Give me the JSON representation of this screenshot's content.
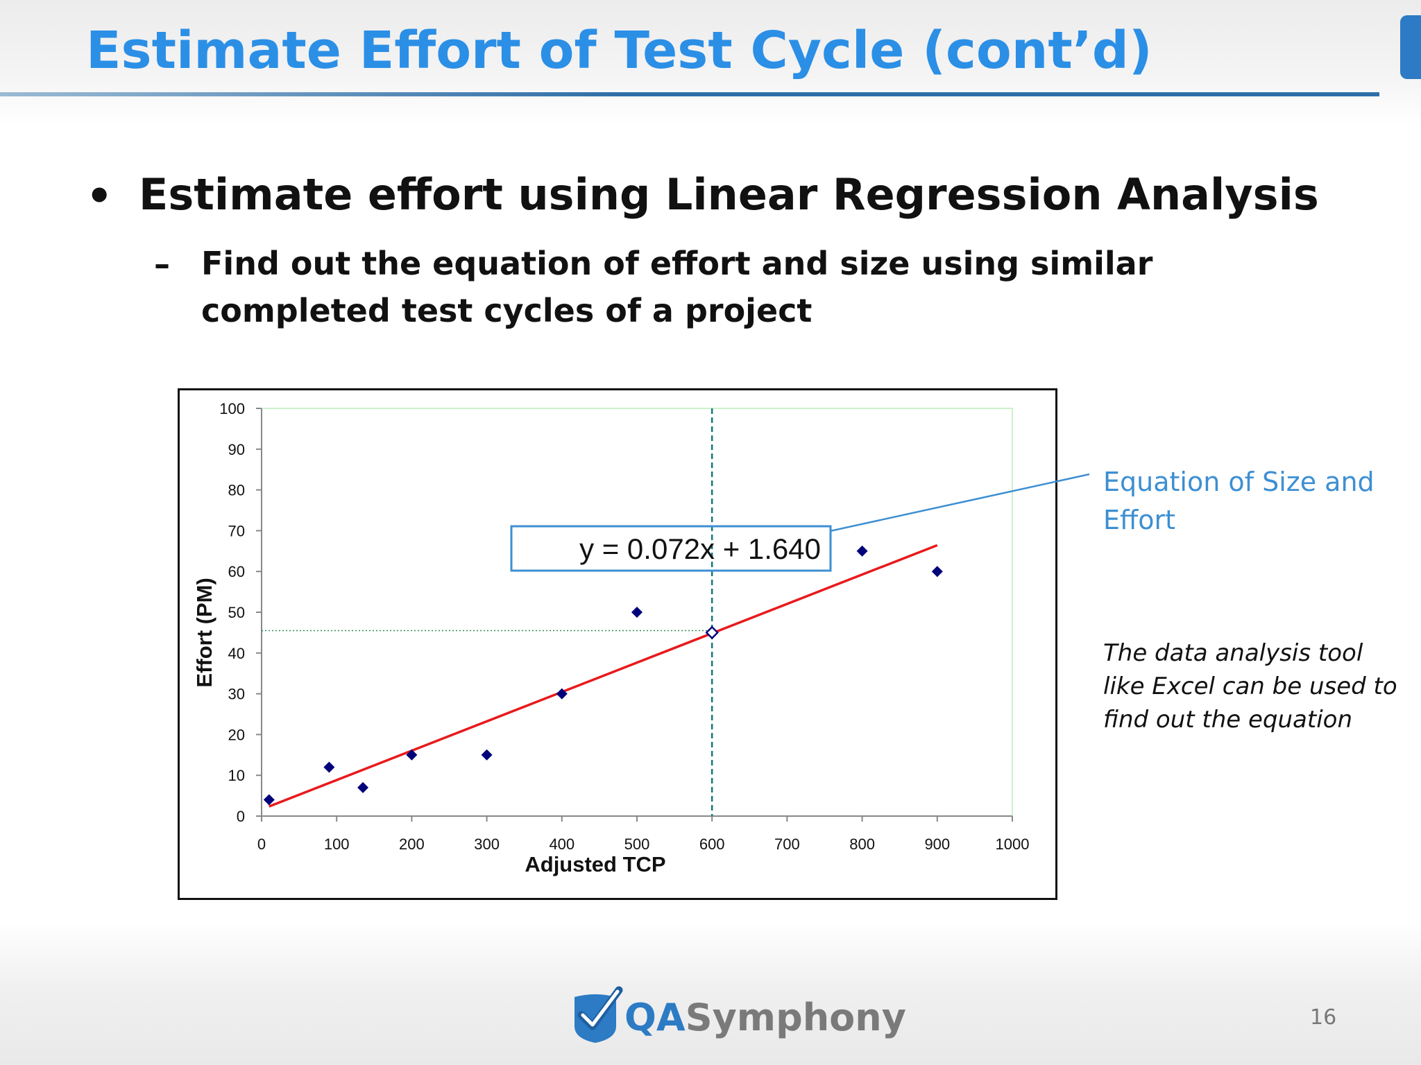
{
  "slide": {
    "title": "Estimate Effort of Test Cycle (cont’d)",
    "bullet": "Estimate effort using Linear Regression Analysis",
    "sub_bullet": "Find out the equation of effort and size using similar completed test cycles of a project",
    "callout_label": "Equation of Size and Effort",
    "note": "The data analysis tool like Excel can be used to find out the equation",
    "page_number": "16",
    "logo_prefix": "QA",
    "logo_suffix": "Symphony"
  },
  "colors": {
    "title": "#2b8fe6",
    "points": "#00007a",
    "trendline": "#e8191b",
    "guide": "#137a7a",
    "callout": "#3d8fd2",
    "plot_border": "#ccf2cc"
  },
  "chart_data": {
    "type": "scatter",
    "xlabel": "Adjusted TCP",
    "ylabel": "Effort (PM)",
    "xlim": [
      0,
      1000
    ],
    "ylim": [
      0,
      100
    ],
    "x_ticks": [
      "0",
      "100",
      "200",
      "300",
      "400",
      "500",
      "600",
      "700",
      "800",
      "900",
      "1000"
    ],
    "y_ticks": [
      "0",
      "10",
      "20",
      "30",
      "40",
      "50",
      "60",
      "70",
      "80",
      "90",
      "100"
    ],
    "grid": false,
    "legend": "none",
    "points": [
      {
        "x": 10,
        "y": 4
      },
      {
        "x": 90,
        "y": 12
      },
      {
        "x": 135,
        "y": 7
      },
      {
        "x": 200,
        "y": 15
      },
      {
        "x": 300,
        "y": 15
      },
      {
        "x": 400,
        "y": 30
      },
      {
        "x": 500,
        "y": 50
      },
      {
        "x": 800,
        "y": 65
      },
      {
        "x": 900,
        "y": 60
      }
    ],
    "estimate_point": {
      "x": 600,
      "y": 45
    },
    "trendline": {
      "equation": "y = 0.072x + 1.640",
      "slope": 0.072,
      "intercept": 1.64,
      "x_range": [
        10,
        900
      ]
    },
    "guide_lines": {
      "x": 600,
      "y": 45.5
    }
  }
}
